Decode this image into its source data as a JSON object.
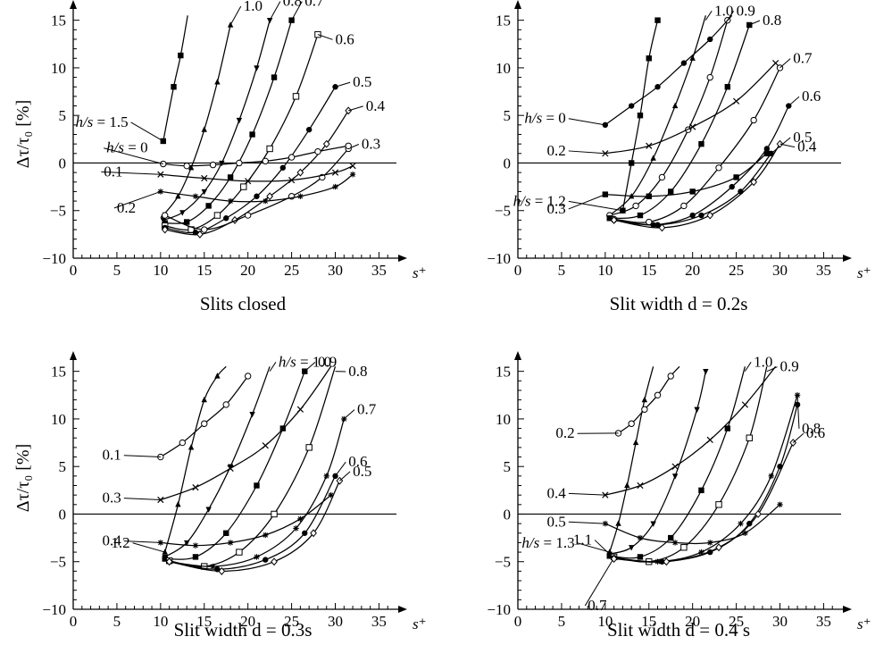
{
  "chart_data": [
    {
      "type": "line",
      "title": "Slits closed",
      "xlabel": "s⁺",
      "ylabel": "Δτ/τ₀ [%]",
      "xlim": [
        0,
        37
      ],
      "ylim": [
        -10,
        16
      ],
      "xticks": [
        "0",
        "5",
        "10",
        "15",
        "20",
        "25",
        "30",
        "35"
      ],
      "yticks": [
        "−10",
        "−5",
        "0",
        "5",
        "10",
        "15"
      ],
      "grid": false,
      "legend": "none",
      "series": [
        {
          "label": "h/s = 1.5",
          "marker": "filled-square",
          "x": [
            10.3,
            11.5,
            12.3,
            13.1
          ],
          "y": [
            2.3,
            8.0,
            11.3,
            15.5
          ]
        },
        {
          "label": "1.0",
          "marker": "filled-triangle",
          "x": [
            10.3,
            12.0,
            13.5,
            15.0,
            16.5,
            18.0
          ],
          "y": [
            -5.5,
            -3.5,
            -0.5,
            3.5,
            8.5,
            14.5
          ]
        },
        {
          "label": "0.8",
          "marker": "filled-triangle-down",
          "x": [
            10.3,
            12.5,
            15.0,
            17.0,
            19.0,
            21.0,
            22.5
          ],
          "y": [
            -6.0,
            -5.2,
            -3.0,
            0.0,
            4.5,
            10.0,
            15.0
          ]
        },
        {
          "label": "0.7",
          "marker": "filled-square",
          "x": [
            10.5,
            13.0,
            15.5,
            18.0,
            20.5,
            23.0,
            25.0
          ],
          "y": [
            -6.3,
            -6.2,
            -4.5,
            -1.5,
            3.0,
            9.0,
            15.0
          ]
        },
        {
          "label": "0.6",
          "marker": "open-square",
          "x": [
            10.5,
            13.5,
            16.5,
            19.5,
            22.5,
            25.5,
            28.0
          ],
          "y": [
            -6.6,
            -7.0,
            -5.5,
            -2.5,
            1.5,
            7.0,
            13.5
          ]
        },
        {
          "label": "0.5",
          "marker": "filled-circle",
          "x": [
            10.5,
            14.0,
            17.5,
            21.0,
            24.0,
            27.0,
            30.0
          ],
          "y": [
            -6.8,
            -7.3,
            -5.8,
            -3.5,
            -0.5,
            3.5,
            8.0
          ]
        },
        {
          "label": "0.4",
          "marker": "open-diamond",
          "x": [
            10.5,
            14.5,
            18.5,
            22.5,
            26.0,
            29.0,
            31.5
          ],
          "y": [
            -7.0,
            -7.5,
            -6.0,
            -3.5,
            -1.0,
            2.0,
            5.5
          ]
        },
        {
          "label": "0.3",
          "marker": "open-circle",
          "x": [
            10.5,
            15.0,
            20.0,
            25.0,
            28.5,
            31.5
          ],
          "y": [
            -5.5,
            -7.0,
            -5.5,
            -3.5,
            -1.5,
            1.5
          ]
        },
        {
          "label": "0.2",
          "marker": "asterisk",
          "x": [
            10.0,
            14.0,
            18.0,
            22.0,
            26.0,
            30.0,
            32.0
          ],
          "y": [
            -3.0,
            -3.5,
            -4.0,
            -4.0,
            -3.5,
            -2.5,
            -1.2
          ]
        },
        {
          "label": "0.1",
          "marker": "cross",
          "x": [
            10.0,
            15.0,
            20.0,
            25.0,
            30.0,
            32.0
          ],
          "y": [
            -1.2,
            -1.6,
            -1.9,
            -1.8,
            -1.0,
            -0.3
          ]
        },
        {
          "label": "h/s = 0",
          "marker": "open-circle",
          "x": [
            10.3,
            13.0,
            16.0,
            19.0,
            22.0,
            25.0,
            28.0,
            31.5
          ],
          "y": [
            -0.1,
            -0.3,
            -0.2,
            0.0,
            0.2,
            0.6,
            1.2,
            1.8
          ]
        }
      ]
    },
    {
      "type": "line",
      "title": "Slit width d = 0.2s",
      "xlabel": "s⁺",
      "ylabel": "",
      "xlim": [
        0,
        37
      ],
      "ylim": [
        -10,
        16
      ],
      "xticks": [
        "0",
        "5",
        "10",
        "15",
        "20",
        "25",
        "30",
        "35"
      ],
      "yticks": [
        "−10",
        "−5",
        "0",
        "5",
        "10",
        "15"
      ],
      "grid": false,
      "legend": "none",
      "series": [
        {
          "label": "h/s = 1.2",
          "marker": "filled-square",
          "x": [
            12.0,
            13.0,
            14.0,
            15.0,
            16.0
          ],
          "y": [
            -5.0,
            0.0,
            5.0,
            11.0,
            15.0
          ]
        },
        {
          "label": "1.0",
          "marker": "filled-triangle",
          "x": [
            10.5,
            13.0,
            15.5,
            18.0,
            20.0,
            21.5
          ],
          "y": [
            -5.5,
            -3.5,
            0.5,
            6.0,
            11.0,
            15.5
          ]
        },
        {
          "label": "0.9",
          "marker": "open-circle",
          "x": [
            10.5,
            13.5,
            16.5,
            19.5,
            22.0,
            24.0
          ],
          "y": [
            -5.5,
            -4.5,
            -1.5,
            3.5,
            9.0,
            15.0
          ]
        },
        {
          "label": "0.8",
          "marker": "filled-square",
          "x": [
            10.5,
            14.0,
            17.5,
            21.0,
            24.0,
            26.5
          ],
          "y": [
            -5.8,
            -5.5,
            -3.0,
            2.0,
            8.0,
            14.5
          ]
        },
        {
          "label": "0.7",
          "marker": "open-circle",
          "x": [
            11.0,
            15.0,
            19.0,
            23.0,
            27.0,
            30.0
          ],
          "y": [
            -5.9,
            -6.2,
            -4.5,
            -0.5,
            4.5,
            10.0
          ]
        },
        {
          "label": "0.6",
          "marker": "filled-circle",
          "x": [
            11.0,
            15.5,
            20.0,
            24.5,
            28.5,
            31.0
          ],
          "y": [
            -6.0,
            -6.5,
            -5.5,
            -2.5,
            1.5,
            6.0
          ]
        },
        {
          "label": "0.5",
          "marker": "filled-circle",
          "x": [
            11.0,
            16.0,
            21.0,
            25.5,
            29.0
          ],
          "y": [
            -6.0,
            -6.5,
            -5.5,
            -3.0,
            1.0
          ]
        },
        {
          "label": "0.4",
          "marker": "open-diamond",
          "x": [
            11.0,
            16.5,
            22.0,
            27.0,
            30.0
          ],
          "y": [
            -6.0,
            -6.8,
            -5.5,
            -2.0,
            2.0
          ]
        },
        {
          "label": "0.3",
          "marker": "filled-square",
          "x": [
            10.0,
            15.0,
            20.0,
            25.0,
            28.5
          ],
          "y": [
            -3.3,
            -3.5,
            -3.0,
            -1.5,
            1.0
          ]
        },
        {
          "label": "0.2",
          "marker": "cross",
          "x": [
            10.0,
            15.0,
            20.0,
            25.0,
            29.5
          ],
          "y": [
            1.0,
            1.8,
            3.8,
            6.5,
            10.5
          ]
        },
        {
          "label": "h/s = 0",
          "marker": "filled-circle",
          "x": [
            10.0,
            13.0,
            16.0,
            19.0,
            22.0,
            24.5
          ],
          "y": [
            4.0,
            6.0,
            8.0,
            10.5,
            13.0,
            15.5
          ]
        }
      ]
    },
    {
      "type": "line",
      "title": "Slit width d = 0.3s",
      "xlabel": "s⁺",
      "ylabel": "Δτ/τ₀ [%]",
      "xlim": [
        0,
        37
      ],
      "ylim": [
        -10,
        16
      ],
      "xticks": [
        "0",
        "5",
        "10",
        "15",
        "20",
        "25",
        "30",
        "35"
      ],
      "yticks": [
        "−10",
        "−5",
        "0",
        "5",
        "10",
        "15"
      ],
      "grid": false,
      "legend": "none",
      "series": [
        {
          "label": "1.2",
          "marker": "filled-triangle",
          "x": [
            10.5,
            12.0,
            13.5,
            15.0,
            16.5,
            17.5
          ],
          "y": [
            -4.0,
            1.0,
            7.0,
            12.0,
            14.5,
            15.5
          ]
        },
        {
          "label": "h/s = 1.0",
          "marker": "filled-triangle-down",
          "x": [
            10.5,
            13.0,
            15.5,
            18.0,
            20.5,
            22.5
          ],
          "y": [
            -4.5,
            -3.0,
            0.5,
            5.0,
            10.5,
            15.5
          ]
        },
        {
          "label": "0.9",
          "marker": "filled-square",
          "x": [
            10.5,
            14.0,
            17.5,
            21.0,
            24.0,
            26.5
          ],
          "y": [
            -4.7,
            -4.5,
            -2.0,
            3.0,
            9.0,
            15.0
          ]
        },
        {
          "label": "0.8",
          "marker": "open-square",
          "x": [
            11.0,
            15.0,
            19.0,
            23.0,
            27.0,
            30.0
          ],
          "y": [
            -4.9,
            -5.5,
            -4.0,
            0.0,
            7.0,
            15.5
          ]
        },
        {
          "label": "0.7",
          "marker": "asterisk",
          "x": [
            11.0,
            16.0,
            21.0,
            25.5,
            29.0,
            31.0
          ],
          "y": [
            -5.0,
            -5.5,
            -4.5,
            -1.5,
            4.0,
            10.0
          ]
        },
        {
          "label": "0.6",
          "marker": "filled-circle",
          "x": [
            11.0,
            16.5,
            22.0,
            26.5,
            30.0
          ],
          "y": [
            -5.0,
            -5.8,
            -4.8,
            -2.0,
            4.0
          ]
        },
        {
          "label": "0.5",
          "marker": "open-diamond",
          "x": [
            11.0,
            17.0,
            23.0,
            27.5,
            30.5
          ],
          "y": [
            -5.0,
            -6.0,
            -5.0,
            -2.0,
            3.5
          ]
        },
        {
          "label": "0.4",
          "marker": "asterisk",
          "x": [
            10.0,
            14.0,
            18.0,
            22.0,
            26.0,
            29.5
          ],
          "y": [
            -3.0,
            -3.3,
            -3.0,
            -2.2,
            -0.5,
            2.0
          ]
        },
        {
          "label": "0.3",
          "marker": "cross",
          "x": [
            10.0,
            14.0,
            18.0,
            22.0,
            26.0,
            29.5
          ],
          "y": [
            1.5,
            2.8,
            4.8,
            7.2,
            11.0,
            15.5
          ]
        },
        {
          "label": "0.1",
          "marker": "open-circle",
          "x": [
            10.0,
            12.5,
            15.0,
            17.5,
            20.0
          ],
          "y": [
            6.0,
            7.5,
            9.5,
            11.5,
            14.5
          ]
        }
      ]
    },
    {
      "type": "line",
      "title": "Slit width d = 0.4 s",
      "xlabel": "s⁺",
      "ylabel": "",
      "xlim": [
        0,
        37
      ],
      "ylim": [
        -10,
        16
      ],
      "xticks": [
        "0",
        "5",
        "10",
        "15",
        "20",
        "25",
        "30",
        "35"
      ],
      "yticks": [
        "−10",
        "−5",
        "0",
        "5",
        "10",
        "15"
      ],
      "grid": false,
      "legend": "none",
      "series": [
        {
          "label": "h/s = 1.3",
          "marker": "filled-triangle",
          "x": [
            10.5,
            11.5,
            12.5,
            13.5,
            14.5,
            15.5
          ],
          "y": [
            -4.0,
            -1.0,
            3.0,
            7.5,
            12.0,
            15.5
          ]
        },
        {
          "label": "1.1",
          "marker": "filled-triangle-down",
          "x": [
            10.5,
            13.0,
            15.5,
            18.0,
            20.5,
            21.5
          ],
          "y": [
            -4.2,
            -3.5,
            -1.0,
            4.0,
            11.0,
            15.0
          ]
        },
        {
          "label": "1.0",
          "marker": "filled-square",
          "x": [
            10.5,
            14.0,
            17.5,
            21.0,
            24.0,
            26.0
          ],
          "y": [
            -4.4,
            -4.5,
            -2.5,
            2.5,
            9.0,
            15.5
          ]
        },
        {
          "label": "0.9",
          "marker": "open-square",
          "x": [
            11.0,
            15.0,
            19.0,
            23.0,
            26.5,
            28.5
          ],
          "y": [
            -4.5,
            -5.0,
            -3.5,
            1.0,
            8.0,
            15.5
          ]
        },
        {
          "label": "0.8",
          "marker": "asterisk",
          "x": [
            11.0,
            16.0,
            21.0,
            25.5,
            29.0,
            32.0
          ],
          "y": [
            -4.6,
            -5.0,
            -4.0,
            -1.0,
            4.0,
            12.5
          ]
        },
        {
          "label": "0.7",
          "marker": "filled-circle",
          "x": [
            11.0,
            16.5,
            22.0,
            26.5,
            30.0,
            32.0
          ],
          "y": [
            -4.6,
            -5.0,
            -4.0,
            -1.0,
            5.0,
            11.5
          ]
        },
        {
          "label": "0.6",
          "marker": "open-diamond",
          "x": [
            11.0,
            17.0,
            23.0,
            27.5,
            31.5
          ],
          "y": [
            -4.7,
            -5.0,
            -3.5,
            0.0,
            7.5
          ]
        },
        {
          "label": "0.5",
          "marker": "asterisk",
          "x": [
            10.0,
            14.0,
            18.0,
            22.0,
            26.0,
            30.0
          ],
          "y": [
            -1.0,
            -2.5,
            -3.0,
            -3.0,
            -2.0,
            1.0
          ]
        },
        {
          "label": "0.4",
          "marker": "cross",
          "x": [
            10.0,
            14.0,
            18.0,
            22.0,
            26.0,
            29.5
          ],
          "y": [
            2.0,
            3.0,
            5.0,
            7.8,
            11.5,
            15.5
          ]
        },
        {
          "label": "0.2",
          "marker": "open-circle",
          "x": [
            11.5,
            13.0,
            14.5,
            16.0,
            17.5,
            18.5
          ],
          "y": [
            8.5,
            9.5,
            11.0,
            12.5,
            14.5,
            15.5
          ]
        }
      ]
    }
  ]
}
